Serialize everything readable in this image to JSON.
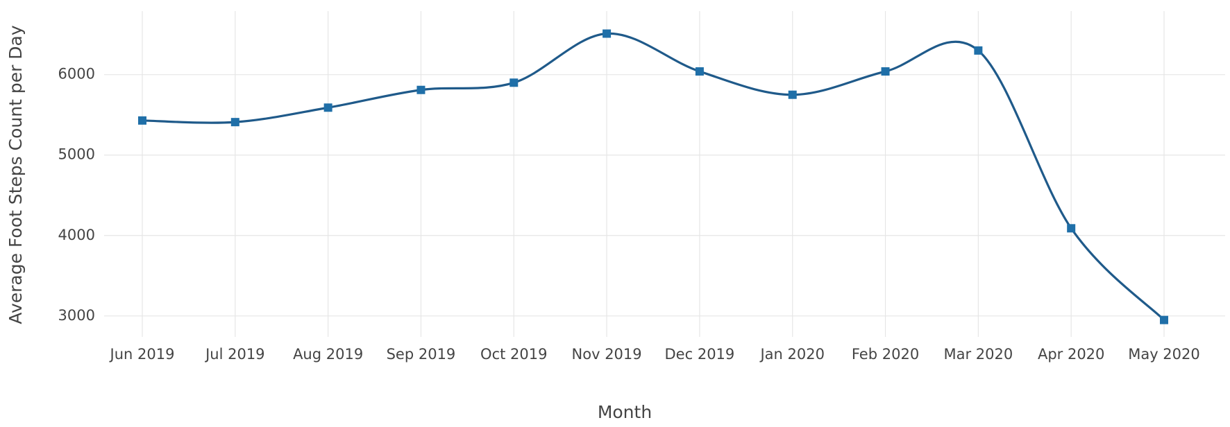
{
  "chart_data": {
    "type": "line",
    "x_label": "Month",
    "y_label": "Average Foot Steps Count per Day",
    "categories": [
      "Jun 2019",
      "Jul 2019",
      "Aug 2019",
      "Sep 2019",
      "Oct 2019",
      "Nov 2019",
      "Dec 2019",
      "Jan 2020",
      "Feb 2020",
      "Mar 2020",
      "Apr 2020",
      "May 2020"
    ],
    "series": [
      {
        "color": "#1f5a8a",
        "marker_color": "#1f6fa8",
        "values": [
          5430,
          5410,
          5590,
          5810,
          5900,
          6510,
          6040,
          5750,
          6040,
          6300,
          4090,
          2950
        ]
      }
    ],
    "ylim": [
      2740,
      6790
    ],
    "yticks": [
      3000,
      4000,
      5000,
      6000
    ],
    "grid": true,
    "smooth": true
  }
}
